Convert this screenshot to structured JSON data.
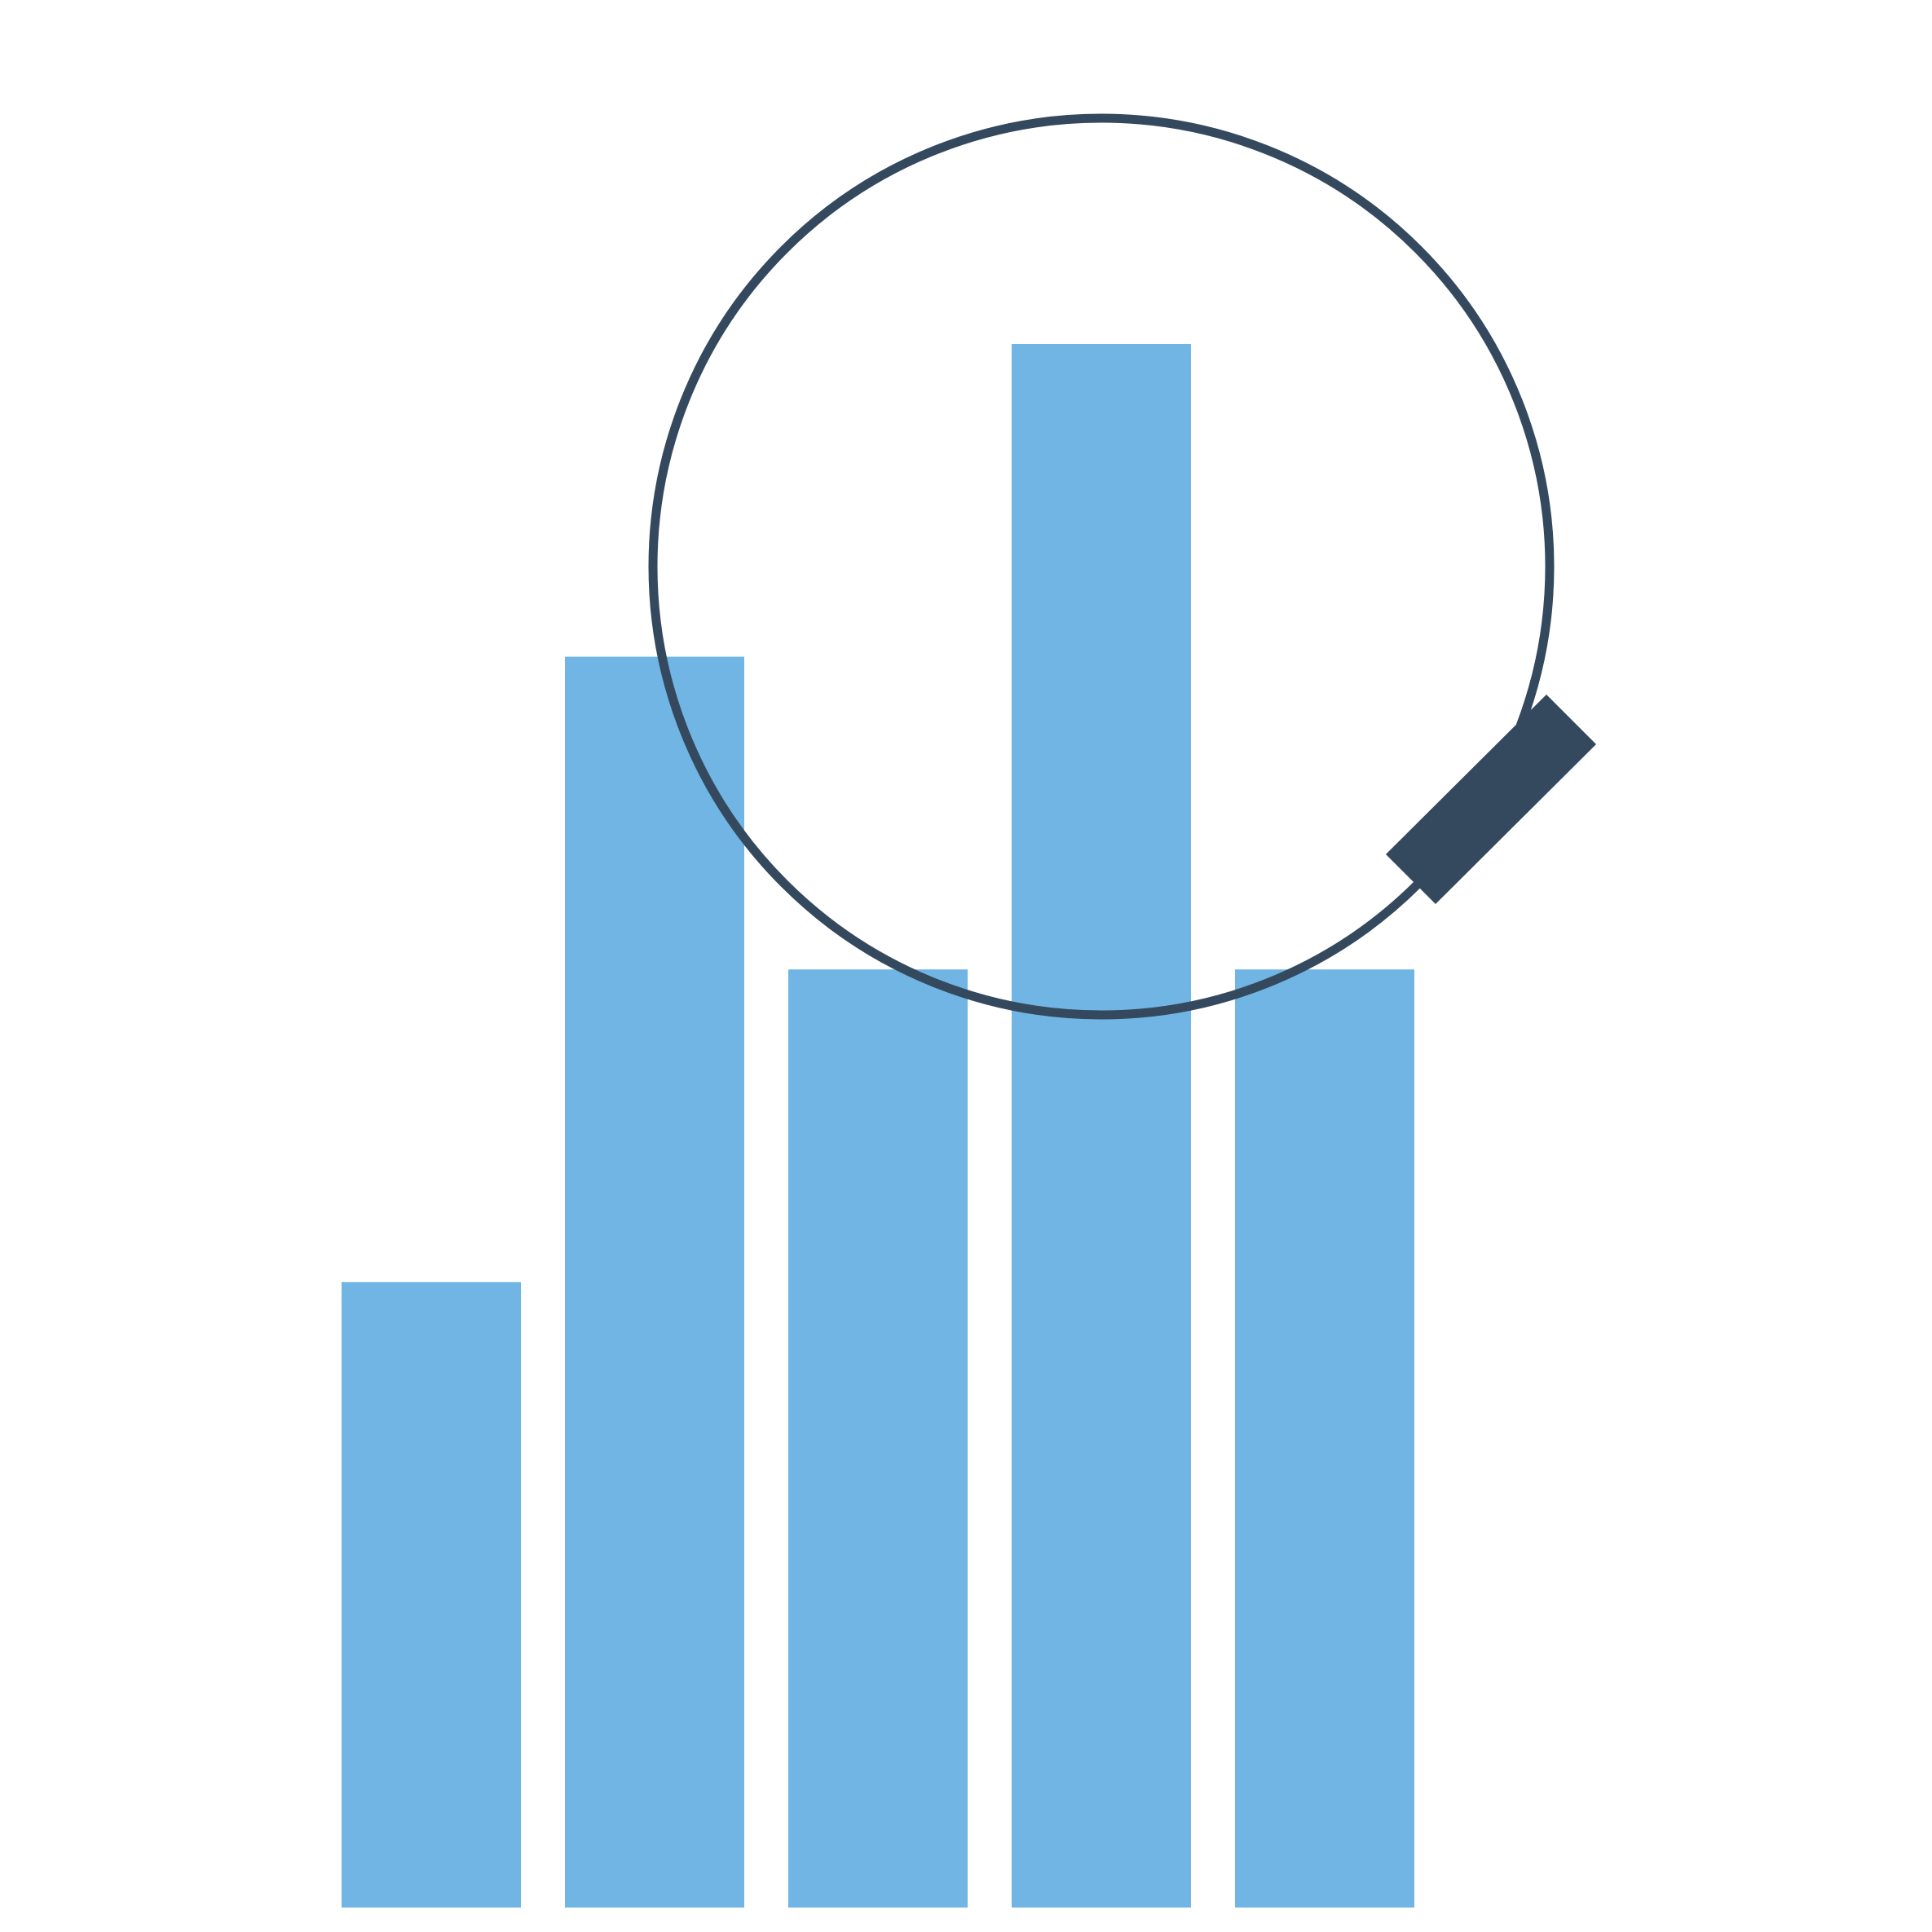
{
  "icon": {
    "name": "bar-chart-magnifier-icon",
    "colors": {
      "bars": "#71b5e4",
      "magnifier": "#34495e",
      "background": "#ffffff"
    },
    "bars": [
      {
        "relative_height": 0.4
      },
      {
        "relative_height": 0.8
      },
      {
        "relative_height": 0.6
      },
      {
        "relative_height": 1.0
      },
      {
        "relative_height": 0.6
      }
    ]
  }
}
